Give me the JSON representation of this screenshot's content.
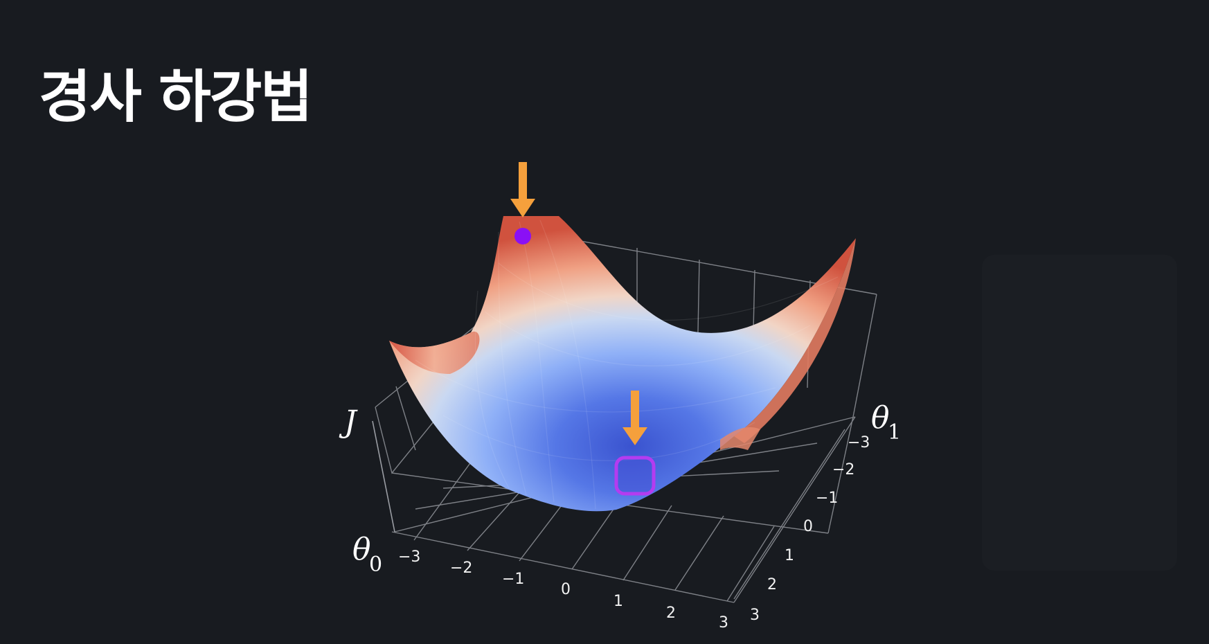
{
  "title": "경사 하강법",
  "axes": {
    "z_label": "J",
    "x_label": "θ",
    "x_sub": "0",
    "y_label": "θ",
    "y_sub": "1",
    "x_ticks": [
      "−3",
      "−2",
      "−1",
      "0",
      "1",
      "2",
      "3"
    ],
    "y_ticks": [
      "−3",
      "−2",
      "−1",
      "0",
      "1",
      "2",
      "3"
    ]
  },
  "colors": {
    "arrow": "#f5a03c",
    "start_point": "#8a10f5",
    "minimum_box": "#b43cf0",
    "high": "#c0392b",
    "low": "#3b4cc0"
  },
  "icons": {
    "start_arrow": "down-arrow-icon",
    "minimum_arrow": "down-arrow-icon"
  }
}
